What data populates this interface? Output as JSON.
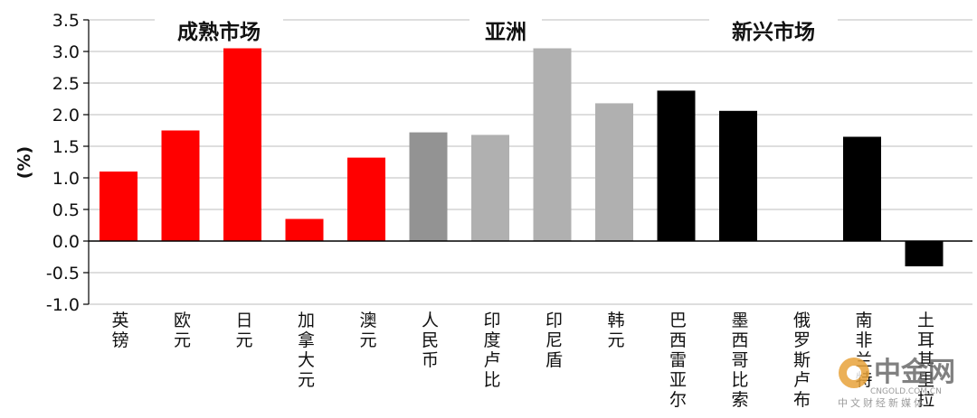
{
  "chart_data": {
    "type": "bar",
    "ylabel": "(%)",
    "ylim": [
      -1.0,
      3.5
    ],
    "yticks": [
      "3.5",
      "3.0",
      "2.5",
      "2.0",
      "1.5",
      "1.0",
      "0.5",
      "0.0",
      "-0.5",
      "-1.0"
    ],
    "grid": true,
    "groups": [
      {
        "name": "成熟市场",
        "color": "#ff0000"
      },
      {
        "name": "亚洲",
        "color": "#b0b0b0"
      },
      {
        "name": "新兴市场",
        "color": "#000000"
      }
    ],
    "categories": [
      "英镑",
      "欧元",
      "日元",
      "加拿大元",
      "澳元",
      "人民币",
      "印度卢比",
      "印尼盾",
      "韩元",
      "巴西雷亚尔",
      "墨西哥比索",
      "俄罗斯卢布",
      "南非兰特",
      "土耳其里拉"
    ],
    "values": [
      1.1,
      1.75,
      3.05,
      0.35,
      1.32,
      1.72,
      1.68,
      3.05,
      2.18,
      2.38,
      2.06,
      0.0,
      1.65,
      -0.4
    ],
    "bar_colors": [
      "#ff0000",
      "#ff0000",
      "#ff0000",
      "#ff0000",
      "#ff0000",
      "#939393",
      "#b0b0b0",
      "#b0b0b0",
      "#b0b0b0",
      "#000000",
      "#000000",
      "#000000",
      "#000000",
      "#000000"
    ]
  },
  "watermark": {
    "brand": "中金网",
    "domain": "CNGOLD.COM.CN",
    "tagline": "中文财经新媒体"
  }
}
